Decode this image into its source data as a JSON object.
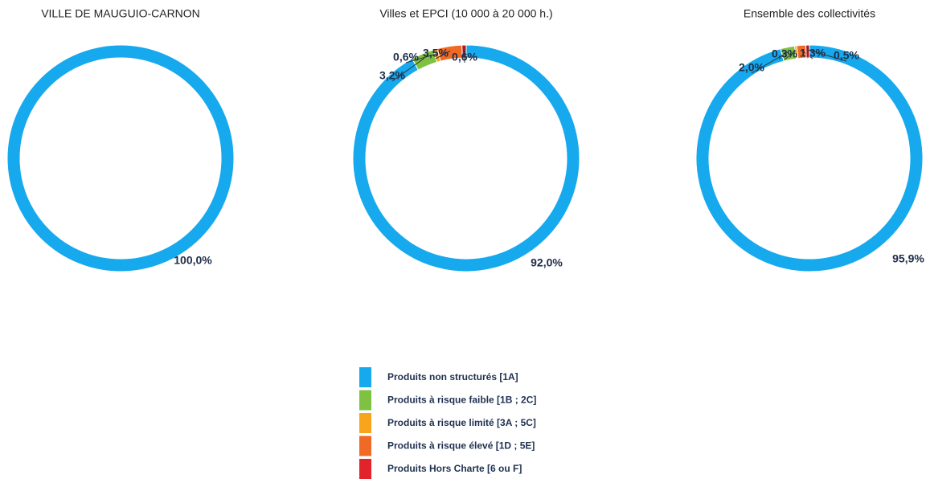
{
  "chart_data": [
    {
      "type": "donut",
      "title": "VILLE DE MAUGUIO-CARNON",
      "categories": [
        "Produits non structurés [1A]",
        "Produits à risque faible [1B ; 2C]",
        "Produits à risque limité [3A ; 5C]",
        "Produits à risque élevé [1D ; 5E]",
        "Produits Hors Charte [6 ou F]"
      ],
      "colors": [
        "#16a9ee",
        "#7fc241",
        "#f8a51d",
        "#f06a25",
        "#e3232b"
      ],
      "values": [
        100,
        0,
        0,
        0,
        0
      ],
      "value_labels": [
        "100,0%",
        null,
        null,
        null,
        null
      ]
    },
    {
      "type": "donut",
      "title": "Villes et EPCI (10 000 à 20 000 h.)",
      "categories": [
        "Produits non structurés [1A]",
        "Produits à risque faible [1B ; 2C]",
        "Produits à risque limité [3A ; 5C]",
        "Produits à risque élevé [1D ; 5E]",
        "Produits Hors Charte [6 ou F]"
      ],
      "colors": [
        "#16a9ee",
        "#7fc241",
        "#f8a51d",
        "#f06a25",
        "#b0161c"
      ],
      "values": [
        92.0,
        3.2,
        0.6,
        3.5,
        0.6
      ],
      "value_labels": [
        "92,0%",
        "3,2%",
        "0,6%",
        "3,5%",
        "0,6%"
      ]
    },
    {
      "type": "donut",
      "title": "Ensemble des collectivités",
      "categories": [
        "Produits non structurés [1A]",
        "Produits à risque faible [1B ; 2C]",
        "Produits à risque limité [3A ; 5C]",
        "Produits à risque élevé [1D ; 5E]",
        "Produits Hors Charte [6 ou F]"
      ],
      "colors": [
        "#16a9ee",
        "#7fc241",
        "#f8a51d",
        "#f06a25",
        "#b0161c"
      ],
      "values": [
        95.9,
        2.0,
        0.3,
        1.3,
        0.5
      ],
      "value_labels": [
        "95,9%",
        "2,0%",
        "0,3%",
        "1,3%",
        "0,5%"
      ]
    }
  ]
}
